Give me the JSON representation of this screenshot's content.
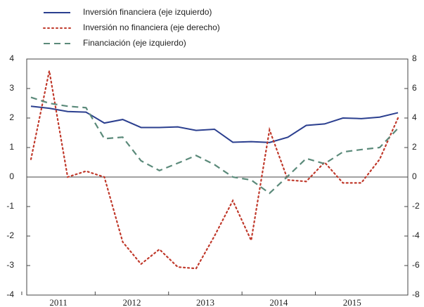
{
  "chart_data": {
    "type": "line",
    "categories": [
      null,
      null,
      "2011",
      null,
      null,
      null,
      "2012",
      null,
      null,
      null,
      "2013",
      null,
      null,
      null,
      "2014",
      null,
      null,
      null,
      "2015",
      null,
      null
    ],
    "series": [
      {
        "name": "Inversión financiera (eje izquierdo)",
        "color": "#2b3f8f",
        "dash": "solid",
        "values": [
          2.4,
          2.33,
          2.22,
          2.2,
          1.83,
          1.95,
          1.68,
          1.68,
          1.7,
          1.58,
          1.62,
          1.18,
          1.2,
          1.17,
          1.35,
          1.75,
          1.8,
          2.0,
          1.98,
          2.03,
          2.18
        ]
      },
      {
        "name": "Inversión no financiera (eje derecho)",
        "color": "#c0392b",
        "dash": "dotted",
        "axis": "y2",
        "values": [
          1.2,
          7.2,
          0,
          0.4,
          0,
          -4.4,
          -5.9,
          -4.9,
          -6.1,
          -6.2,
          -4.0,
          -1.6,
          -4.3,
          3.2,
          -0.2,
          -0.3,
          1.0,
          -0.4,
          -0.4,
          1.2,
          4.0
        ]
      },
      {
        "name": "Financiación (eje izquierdo)",
        "color": "#5b8a7a",
        "dash": "dashed",
        "values": [
          2.7,
          2.5,
          2.4,
          2.35,
          1.3,
          1.35,
          0.55,
          0.22,
          0.47,
          0.73,
          0.42,
          0.0,
          -0.1,
          -0.55,
          0.03,
          0.63,
          0.45,
          0.85,
          0.93,
          1.0,
          1.65
        ]
      }
    ],
    "ylim": [
      -4,
      4
    ],
    "yticks": [
      -4,
      -3,
      -2,
      -1,
      0,
      1,
      2,
      3,
      4
    ],
    "y2lim": [
      -8,
      8
    ],
    "y2ticks": [
      -8,
      -6,
      -4,
      -2,
      0,
      2,
      4,
      6,
      8
    ],
    "legend": "top-left"
  }
}
